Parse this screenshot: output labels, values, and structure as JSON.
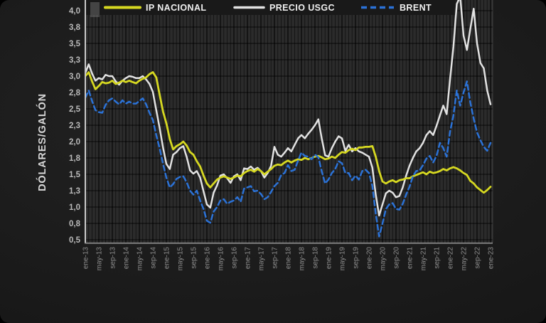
{
  "chart_data": {
    "type": "line",
    "title": "",
    "ylabel": "DÓLARES/GALÓN",
    "xlabel": "",
    "grid": true,
    "legend_position": "top",
    "x_unit": "month",
    "x_start": "ene-13",
    "x_end": "ene-23",
    "x_tick_every_months": 4,
    "x_tick_labels": [
      "ene-13",
      "may-13",
      "sep-13",
      "ene-14",
      "may-14",
      "sep-14",
      "ene-15",
      "may-15",
      "sep-15",
      "ene-16",
      "may-16",
      "sep-16",
      "ene-17",
      "may-17",
      "sep-17",
      "ene-18",
      "may-18",
      "sep-18",
      "ene-19",
      "may-19",
      "sep-19",
      "ene-20",
      "may-20",
      "sep-20",
      "ene-21",
      "may-21",
      "sep-21",
      "ene-22",
      "may-22",
      "sep-22",
      "ene-23"
    ],
    "y_ticks": {
      "min": 0.5,
      "max": 4.0,
      "step": 0.25,
      "labels": [
        "0,5",
        "0,8",
        "1,0",
        "1,3",
        "1,5",
        "1,8",
        "2,0",
        "2,3",
        "2,5",
        "2,8",
        "3,0",
        "3,3",
        "3,5",
        "3,8",
        "4,0"
      ]
    },
    "series": [
      {
        "name": "IP NACIONAL",
        "color": "#d6d821",
        "style": "solid",
        "values": [
          3.0,
          3.06,
          2.92,
          2.8,
          2.85,
          2.91,
          2.89,
          2.9,
          2.93,
          2.88,
          2.9,
          2.93,
          2.91,
          2.93,
          2.91,
          2.89,
          2.93,
          2.96,
          2.98,
          3.03,
          3.06,
          2.98,
          2.72,
          2.46,
          2.28,
          2.04,
          1.88,
          1.93,
          1.96,
          2.0,
          1.94,
          1.84,
          1.8,
          1.7,
          1.62,
          1.48,
          1.36,
          1.3,
          1.36,
          1.42,
          1.45,
          1.47,
          1.45,
          1.43,
          1.45,
          1.48,
          1.47,
          1.52,
          1.55,
          1.57,
          1.54,
          1.58,
          1.55,
          1.5,
          1.54,
          1.58,
          1.63,
          1.65,
          1.64,
          1.68,
          1.71,
          1.68,
          1.71,
          1.73,
          1.72,
          1.75,
          1.73,
          1.75,
          1.77,
          1.78,
          1.76,
          1.73,
          1.74,
          1.77,
          1.75,
          1.8,
          1.84,
          1.83,
          1.87,
          1.89,
          1.87,
          1.91,
          1.91,
          1.92,
          1.92,
          1.93,
          1.77,
          1.55,
          1.39,
          1.36,
          1.39,
          1.41,
          1.38,
          1.41,
          1.42,
          1.44,
          1.44,
          1.47,
          1.49,
          1.51,
          1.53,
          1.5,
          1.54,
          1.52,
          1.53,
          1.55,
          1.58,
          1.56,
          1.59,
          1.61,
          1.59,
          1.56,
          1.52,
          1.49,
          1.4,
          1.36,
          1.3,
          1.26,
          1.22,
          1.26,
          1.31
        ]
      },
      {
        "name": "PRECIO USGC",
        "color": "#e2e2e2",
        "style": "solid",
        "values": [
          3.05,
          3.18,
          3.04,
          2.93,
          2.97,
          2.95,
          3.02,
          3.0,
          3.0,
          2.92,
          2.87,
          2.93,
          2.97,
          3.0,
          2.99,
          2.97,
          2.97,
          3.0,
          2.95,
          2.88,
          2.76,
          2.48,
          2.21,
          1.91,
          1.66,
          1.58,
          1.8,
          1.84,
          1.9,
          1.93,
          1.77,
          1.56,
          1.51,
          1.55,
          1.45,
          1.24,
          1.04,
          0.99,
          1.22,
          1.33,
          1.48,
          1.5,
          1.44,
          1.37,
          1.47,
          1.5,
          1.41,
          1.59,
          1.58,
          1.62,
          1.57,
          1.6,
          1.55,
          1.45,
          1.52,
          1.63,
          1.92,
          1.8,
          1.77,
          1.83,
          1.9,
          1.85,
          1.95,
          2.05,
          2.1,
          2.05,
          2.12,
          2.18,
          2.25,
          2.34,
          2.05,
          1.79,
          1.77,
          1.9,
          2.0,
          2.08,
          2.05,
          1.86,
          1.95,
          1.85,
          1.9,
          1.85,
          1.83,
          1.8,
          1.77,
          1.6,
          1.19,
          0.87,
          1.04,
          1.21,
          1.25,
          1.22,
          1.15,
          1.17,
          1.3,
          1.48,
          1.63,
          1.75,
          1.85,
          1.9,
          1.98,
          2.1,
          2.16,
          2.1,
          2.24,
          2.4,
          2.55,
          2.42,
          2.95,
          3.45,
          4.1,
          4.22,
          3.62,
          3.4,
          3.72,
          4.03,
          3.5,
          3.2,
          3.12,
          2.78,
          2.57
        ]
      },
      {
        "name": "BRENT",
        "color": "#2b72d7",
        "style": "dashed",
        "values": [
          2.67,
          2.78,
          2.62,
          2.48,
          2.45,
          2.44,
          2.56,
          2.63,
          2.66,
          2.61,
          2.57,
          2.63,
          2.58,
          2.61,
          2.58,
          2.58,
          2.62,
          2.66,
          2.57,
          2.44,
          2.33,
          2.1,
          1.9,
          1.66,
          1.45,
          1.3,
          1.35,
          1.43,
          1.46,
          1.47,
          1.38,
          1.25,
          1.19,
          1.25,
          1.1,
          0.97,
          0.79,
          0.76,
          0.93,
          1.0,
          1.1,
          1.12,
          1.05,
          1.08,
          1.1,
          1.15,
          1.08,
          1.28,
          1.3,
          1.32,
          1.24,
          1.25,
          1.2,
          1.12,
          1.15,
          1.23,
          1.32,
          1.37,
          1.49,
          1.52,
          1.64,
          1.55,
          1.57,
          1.71,
          1.83,
          1.78,
          1.77,
          1.73,
          1.8,
          1.76,
          1.55,
          1.36,
          1.42,
          1.52,
          1.58,
          1.7,
          1.67,
          1.52,
          1.52,
          1.41,
          1.48,
          1.42,
          1.55,
          1.57,
          1.52,
          1.32,
          0.9,
          0.55,
          0.75,
          0.97,
          1.04,
          1.06,
          0.97,
          0.96,
          1.05,
          1.19,
          1.31,
          1.47,
          1.55,
          1.56,
          1.64,
          1.74,
          1.78,
          1.68,
          1.78,
          1.98,
          1.9,
          1.77,
          2.15,
          2.4,
          2.78,
          2.55,
          2.75,
          2.92,
          2.6,
          2.35,
          2.14,
          2.02,
          1.92,
          1.86,
          1.98
        ]
      }
    ],
    "colors": {
      "plot_background": "#2b2b2b",
      "gridline": "rgba(0,0,0,0.5)",
      "axis_left": "#c9c9c9",
      "axis_bottom": "#969696"
    }
  }
}
